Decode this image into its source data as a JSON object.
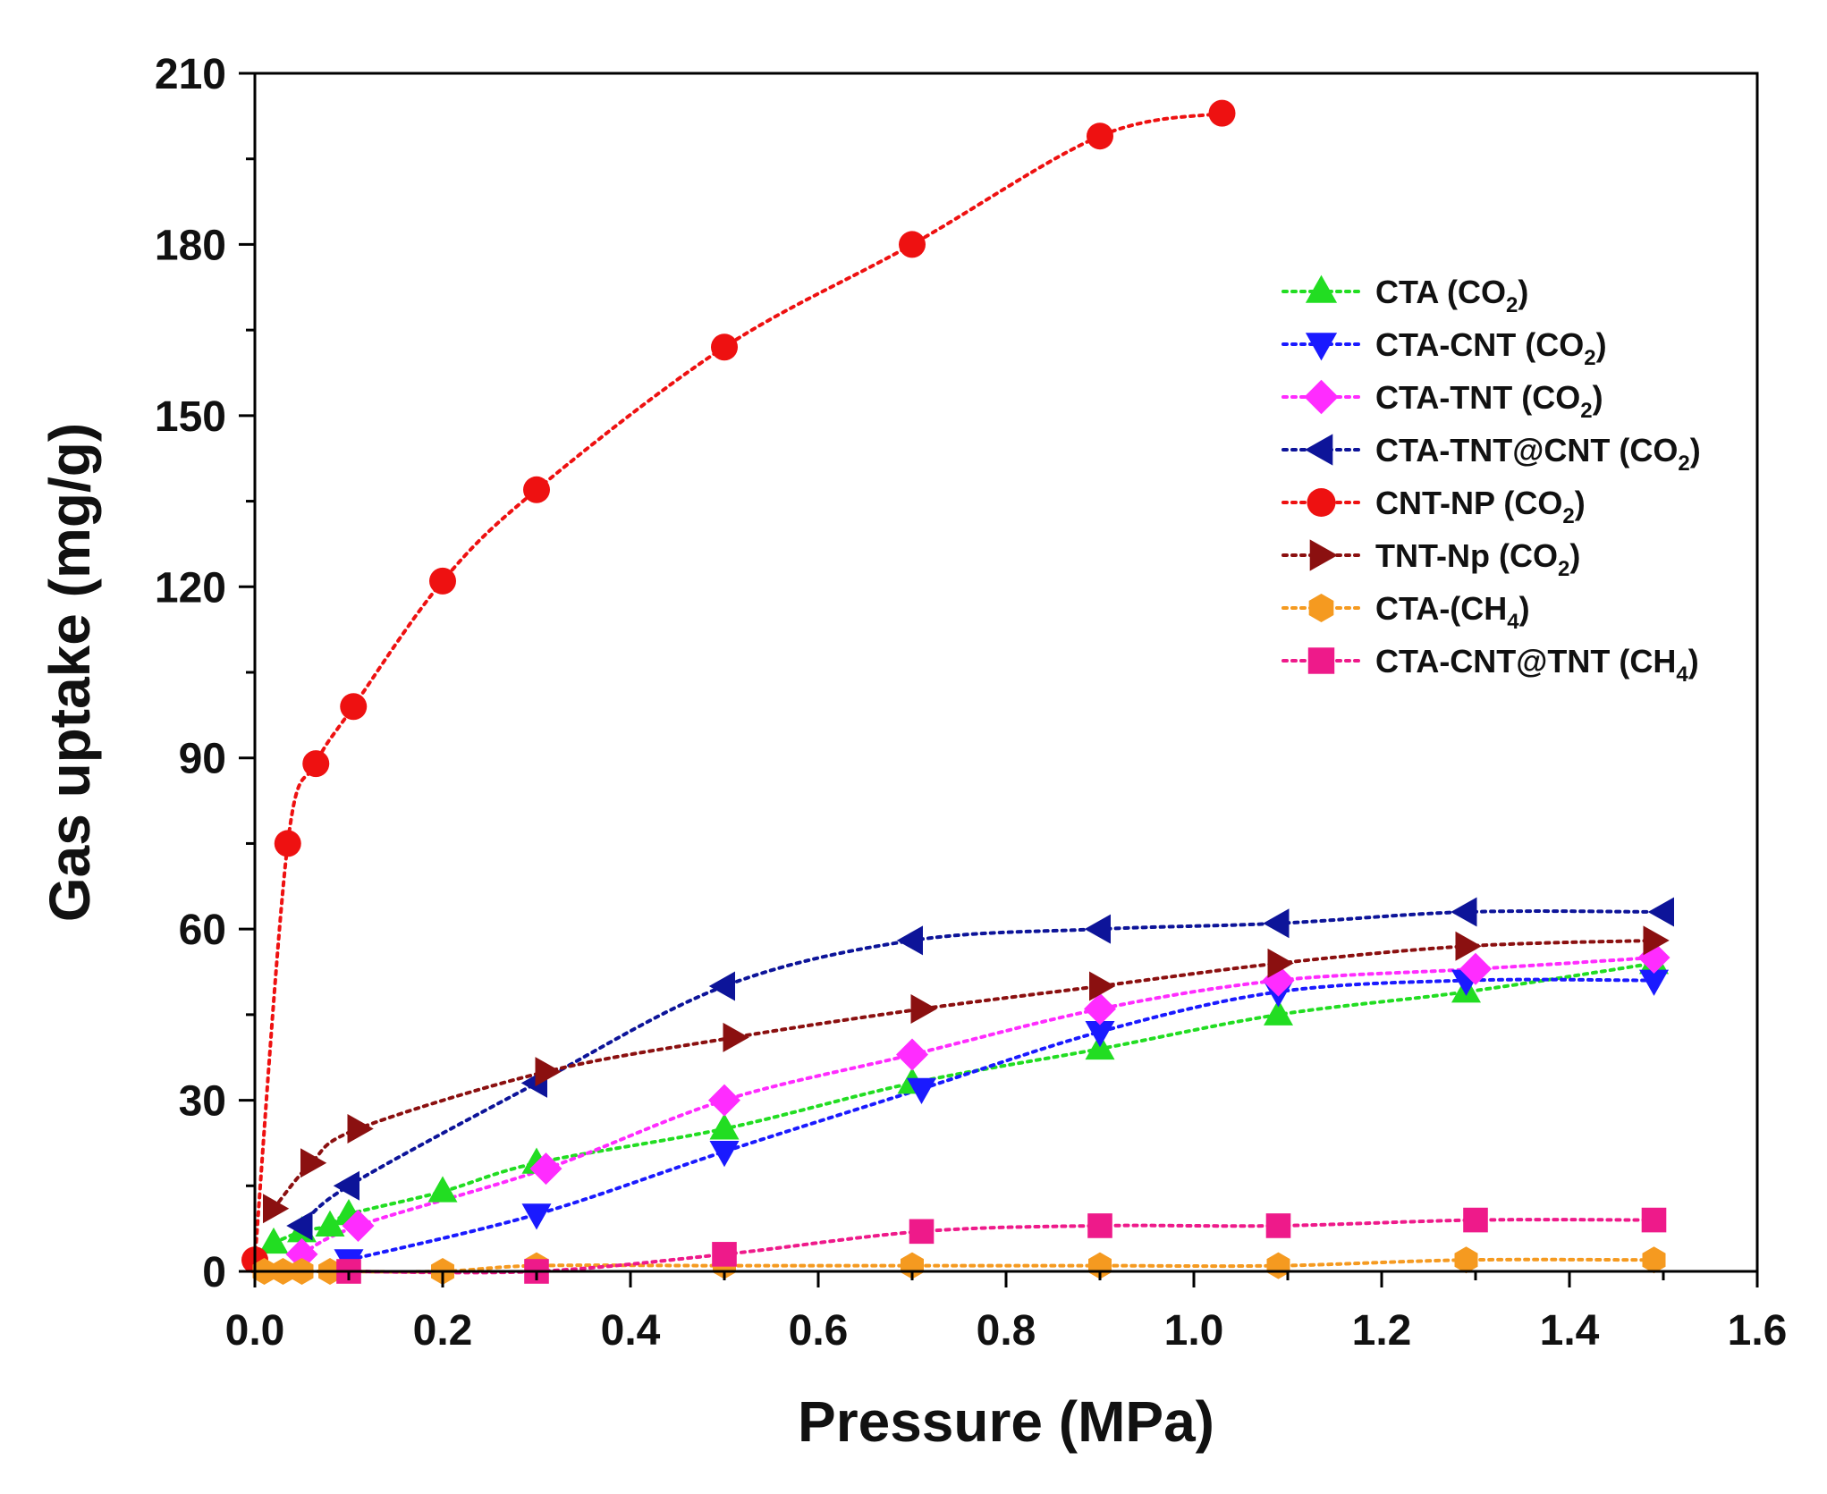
{
  "chart_data": {
    "type": "scatter",
    "title": "",
    "xlabel": "Pressure (MPa)",
    "ylabel": "Gas uptake (mg/g)",
    "xlim": [
      0,
      1.6
    ],
    "ylim": [
      0,
      210
    ],
    "xticks": [
      "0.0",
      "0.2",
      "0.4",
      "0.6",
      "0.8",
      "1.0",
      "1.2",
      "1.4",
      "1.6"
    ],
    "yticks": [
      "0",
      "30",
      "60",
      "90",
      "120",
      "150",
      "180",
      "210"
    ],
    "grid": false,
    "legend_position": "right",
    "series": [
      {
        "name": "CTA (CO2)",
        "label_main": "CTA (CO",
        "label_sub": "2",
        "label_tail": ")",
        "marker": "triangle-up",
        "color": "#22dd22",
        "x": [
          0.02,
          0.05,
          0.08,
          0.1,
          0.2,
          0.3,
          0.5,
          0.7,
          0.9,
          1.09,
          1.29,
          1.49
        ],
        "y": [
          5,
          7,
          8,
          10,
          14,
          19,
          25,
          33,
          39,
          45,
          49,
          54
        ]
      },
      {
        "name": "CTA-CNT (CO2)",
        "label_main": "CTA-CNT (CO",
        "label_sub": "2",
        "label_tail": ")",
        "marker": "triangle-down",
        "color": "#1a1aff",
        "x": [
          0.1,
          0.3,
          0.5,
          0.71,
          0.9,
          1.09,
          1.29,
          1.49
        ],
        "y": [
          2,
          10,
          21,
          32,
          42,
          49,
          51,
          51
        ]
      },
      {
        "name": "CTA-TNT (CO2)",
        "label_main": "CTA-TNT (CO",
        "label_sub": "2",
        "label_tail": ")",
        "marker": "diamond",
        "color": "#ff2cff",
        "x": [
          0.05,
          0.11,
          0.31,
          0.5,
          0.7,
          0.9,
          1.09,
          1.3,
          1.49
        ],
        "y": [
          3,
          8,
          18,
          30,
          38,
          46,
          51,
          53,
          55
        ]
      },
      {
        "name": "CTA-TNT@CNT (CO2)",
        "label_main": "CTA-TNT@CNT (CO",
        "label_sub": "2",
        "label_tail": ")",
        "marker": "triangle-left",
        "color": "#0d1499",
        "x": [
          0.05,
          0.1,
          0.3,
          0.5,
          0.7,
          0.9,
          1.09,
          1.29,
          1.5
        ],
        "y": [
          8,
          15,
          33,
          50,
          58,
          60,
          61,
          63,
          63
        ]
      },
      {
        "name": "CNT-NP (CO2)",
        "label_main": "CNT-NP (CO",
        "label_sub": "2",
        "label_tail": ")",
        "marker": "circle",
        "color": "#ee1111",
        "x": [
          0.0,
          0.035,
          0.065,
          0.105,
          0.2,
          0.3,
          0.5,
          0.7,
          0.9,
          1.03
        ],
        "y": [
          2,
          75,
          89,
          99,
          121,
          137,
          162,
          180,
          199,
          203
        ]
      },
      {
        "name": "TNT-Np (CO2)",
        "label_main": "TNT-Np (CO",
        "label_sub": "2",
        "label_tail": ")",
        "marker": "triangle-right",
        "color": "#8b1010",
        "x": [
          0.02,
          0.06,
          0.11,
          0.31,
          0.51,
          0.71,
          0.9,
          1.09,
          1.29,
          1.49
        ],
        "y": [
          11,
          19,
          25,
          35,
          41,
          46,
          50,
          54,
          57,
          58
        ]
      },
      {
        "name": "CTA-(CH4)",
        "label_main": "CTA-(CH",
        "label_sub": "4",
        "label_tail": ")",
        "marker": "hexagon",
        "color": "#f59a20",
        "x": [
          0.01,
          0.03,
          0.05,
          0.08,
          0.2,
          0.3,
          0.5,
          0.7,
          0.9,
          1.09,
          1.29,
          1.49
        ],
        "y": [
          0,
          0,
          0,
          0,
          0,
          1,
          1,
          1,
          1,
          1,
          2,
          2
        ]
      },
      {
        "name": "CTA-CNT@TNT (CH4)",
        "label_main": "CTA-CNT@TNT (CH",
        "label_sub": "4",
        "label_tail": ")",
        "marker": "square",
        "color": "#ee1a8a",
        "x": [
          0.1,
          0.3,
          0.5,
          0.71,
          0.9,
          1.09,
          1.3,
          1.49
        ],
        "y": [
          0,
          0,
          3,
          7,
          8,
          8,
          9,
          9
        ]
      }
    ]
  }
}
